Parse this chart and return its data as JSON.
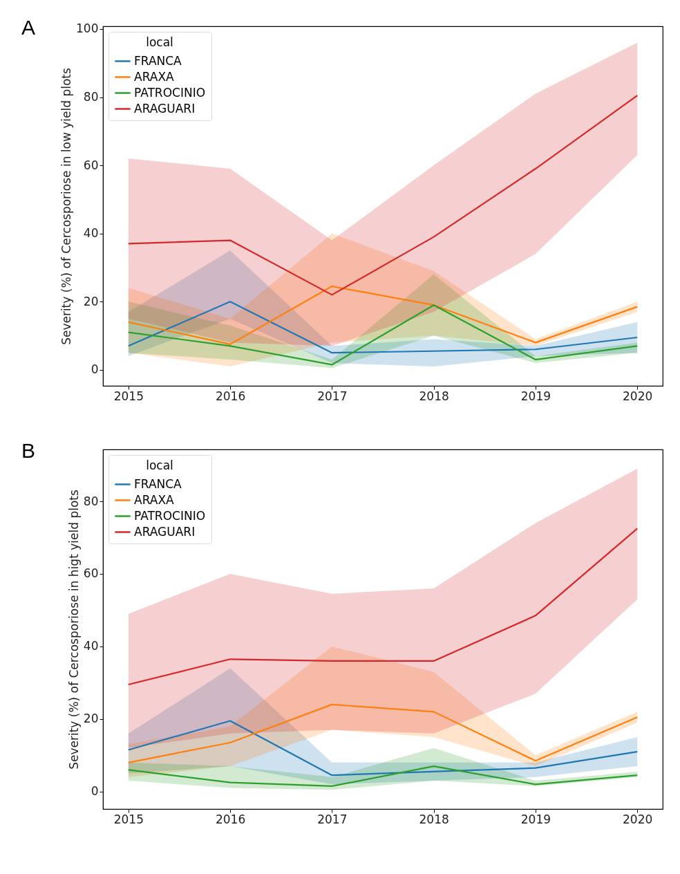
{
  "chart_data": [
    {
      "type": "line",
      "ylabel": "Severity (%) of Cercosporiose in low yield plots",
      "legend_title": "local",
      "legend": "top left",
      "grid": false,
      "marker": "none",
      "line_style": "solid",
      "annotations": [
        "A"
      ],
      "x": [
        2015,
        2016,
        2017,
        2018,
        2019,
        2020
      ],
      "xlim": [
        2014.75,
        2020.25
      ],
      "xticks": [
        2015,
        2016,
        2017,
        2018,
        2019,
        2020
      ],
      "ylim": [
        -4.7,
        100.8
      ],
      "yticks": [
        0,
        20,
        40,
        60,
        80,
        100
      ],
      "series": [
        {
          "name": "FRANCA",
          "color": "#1f77b4",
          "values": [
            7,
            20,
            5,
            5.5,
            6,
            9.5
          ],
          "lower": [
            4,
            15,
            2,
            1,
            4,
            5
          ],
          "upper": [
            17,
            35,
            7,
            9,
            7,
            14
          ]
        },
        {
          "name": "ARAXA",
          "color": "#ff7f0e",
          "values": [
            14,
            7.5,
            24.5,
            19,
            8,
            18.5
          ],
          "lower": [
            5,
            1,
            8,
            10,
            7,
            17
          ],
          "upper": [
            24,
            15,
            40,
            29,
            9,
            20
          ]
        },
        {
          "name": "PATROCINIO",
          "color": "#2ca02c",
          "values": [
            11,
            7,
            1.5,
            19,
            3,
            7
          ],
          "lower": [
            5,
            3,
            0.5,
            10,
            2,
            5
          ],
          "upper": [
            20,
            13,
            3,
            28,
            4,
            8
          ]
        },
        {
          "name": "ARAGUARI",
          "color": "#d62728",
          "values": [
            37,
            38,
            22,
            39,
            59,
            80.5
          ],
          "lower": [
            15,
            8,
            7,
            17,
            34,
            63
          ],
          "upper": [
            62,
            59,
            38,
            60,
            81,
            96
          ]
        }
      ]
    },
    {
      "type": "line",
      "ylabel": "Severity (%) of Cercosporiose in higt yield plots",
      "legend_title": "local",
      "legend": "top left",
      "grid": false,
      "marker": "none",
      "line_style": "solid",
      "annotations": [
        "B"
      ],
      "x": [
        2015,
        2016,
        2017,
        2018,
        2019,
        2020
      ],
      "xlim": [
        2014.75,
        2020.25
      ],
      "xticks": [
        2015,
        2016,
        2017,
        2018,
        2019,
        2020
      ],
      "ylim": [
        -4.8,
        94.3
      ],
      "yticks": [
        0,
        20,
        40,
        60,
        80
      ],
      "series": [
        {
          "name": "FRANCA",
          "color": "#1f77b4",
          "values": [
            11.5,
            19.5,
            4.5,
            5.5,
            6.5,
            11
          ],
          "lower": [
            5,
            7,
            2,
            3,
            4,
            7
          ],
          "upper": [
            16,
            34,
            8,
            8,
            8,
            15
          ]
        },
        {
          "name": "ARAXA",
          "color": "#ff7f0e",
          "values": [
            8,
            13.5,
            24,
            22,
            8.5,
            20.5
          ],
          "lower": [
            4,
            7,
            17,
            15,
            7,
            19
          ],
          "upper": [
            13,
            18,
            40,
            33,
            10,
            22
          ]
        },
        {
          "name": "PATROCINIO",
          "color": "#2ca02c",
          "values": [
            6,
            2.5,
            1.5,
            7,
            2,
            4.5
          ],
          "lower": [
            3,
            1,
            0.5,
            3,
            1.5,
            4
          ],
          "upper": [
            8,
            7,
            4,
            12,
            3,
            5.5
          ]
        },
        {
          "name": "ARAGUARI",
          "color": "#d62728",
          "values": [
            29.5,
            36.5,
            36,
            36,
            48.5,
            72.5
          ],
          "lower": [
            12,
            16,
            17,
            16,
            27,
            53
          ],
          "upper": [
            49,
            60,
            54.5,
            56,
            74,
            89
          ]
        }
      ]
    }
  ]
}
